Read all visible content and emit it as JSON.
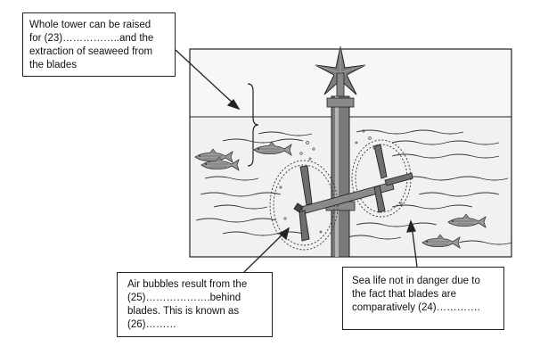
{
  "labels": {
    "top": "Whole tower can be raised\nfor (23)……………..and the\nextraction of seaweed from\nthe blades",
    "bottom_left": "Air bubbles result from the\n(25)……………….behind\nblades. This is known as\n(26)………",
    "bottom_right": "Sea life not in danger due to\nthe fact that blades are\ncomparatively (24)…………."
  },
  "colors": {
    "line": "#222222",
    "sky": "#f7f7f7",
    "water": "#f1f1f1",
    "tower": "#7a7a7a"
  },
  "icons": [
    "fish-icon",
    "rotor-blade-icon",
    "star-turbine-top-icon",
    "brace-icon"
  ]
}
